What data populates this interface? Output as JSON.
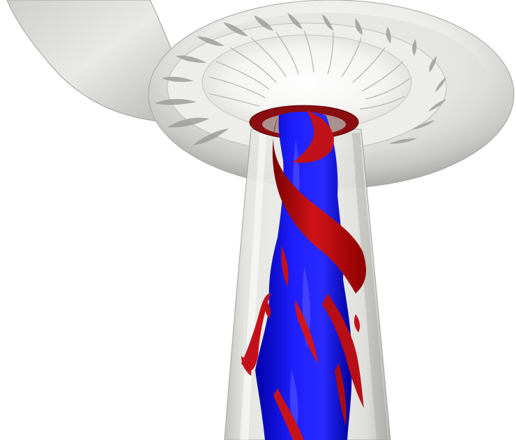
{
  "scene": {
    "background_color": "#ffffff",
    "colors": {
      "casing_light": "#f2f2f0",
      "casing_mid": "#d6d6d2",
      "casing_dark": "#a8a8a4",
      "draft_tube_glass": "#e6e6e2",
      "vortex_core": "#1a1aff",
      "vortex_core_dark": "#0000b0",
      "vortex_rope": "#cc0f12",
      "vortex_rope_dark": "#7a0000"
    },
    "objects": [
      "spiral-casing",
      "stay-vanes",
      "guide-vanes",
      "runner-outlet",
      "draft-tube",
      "vortex-core-isosurface",
      "vortex-rope-isosurface"
    ]
  }
}
